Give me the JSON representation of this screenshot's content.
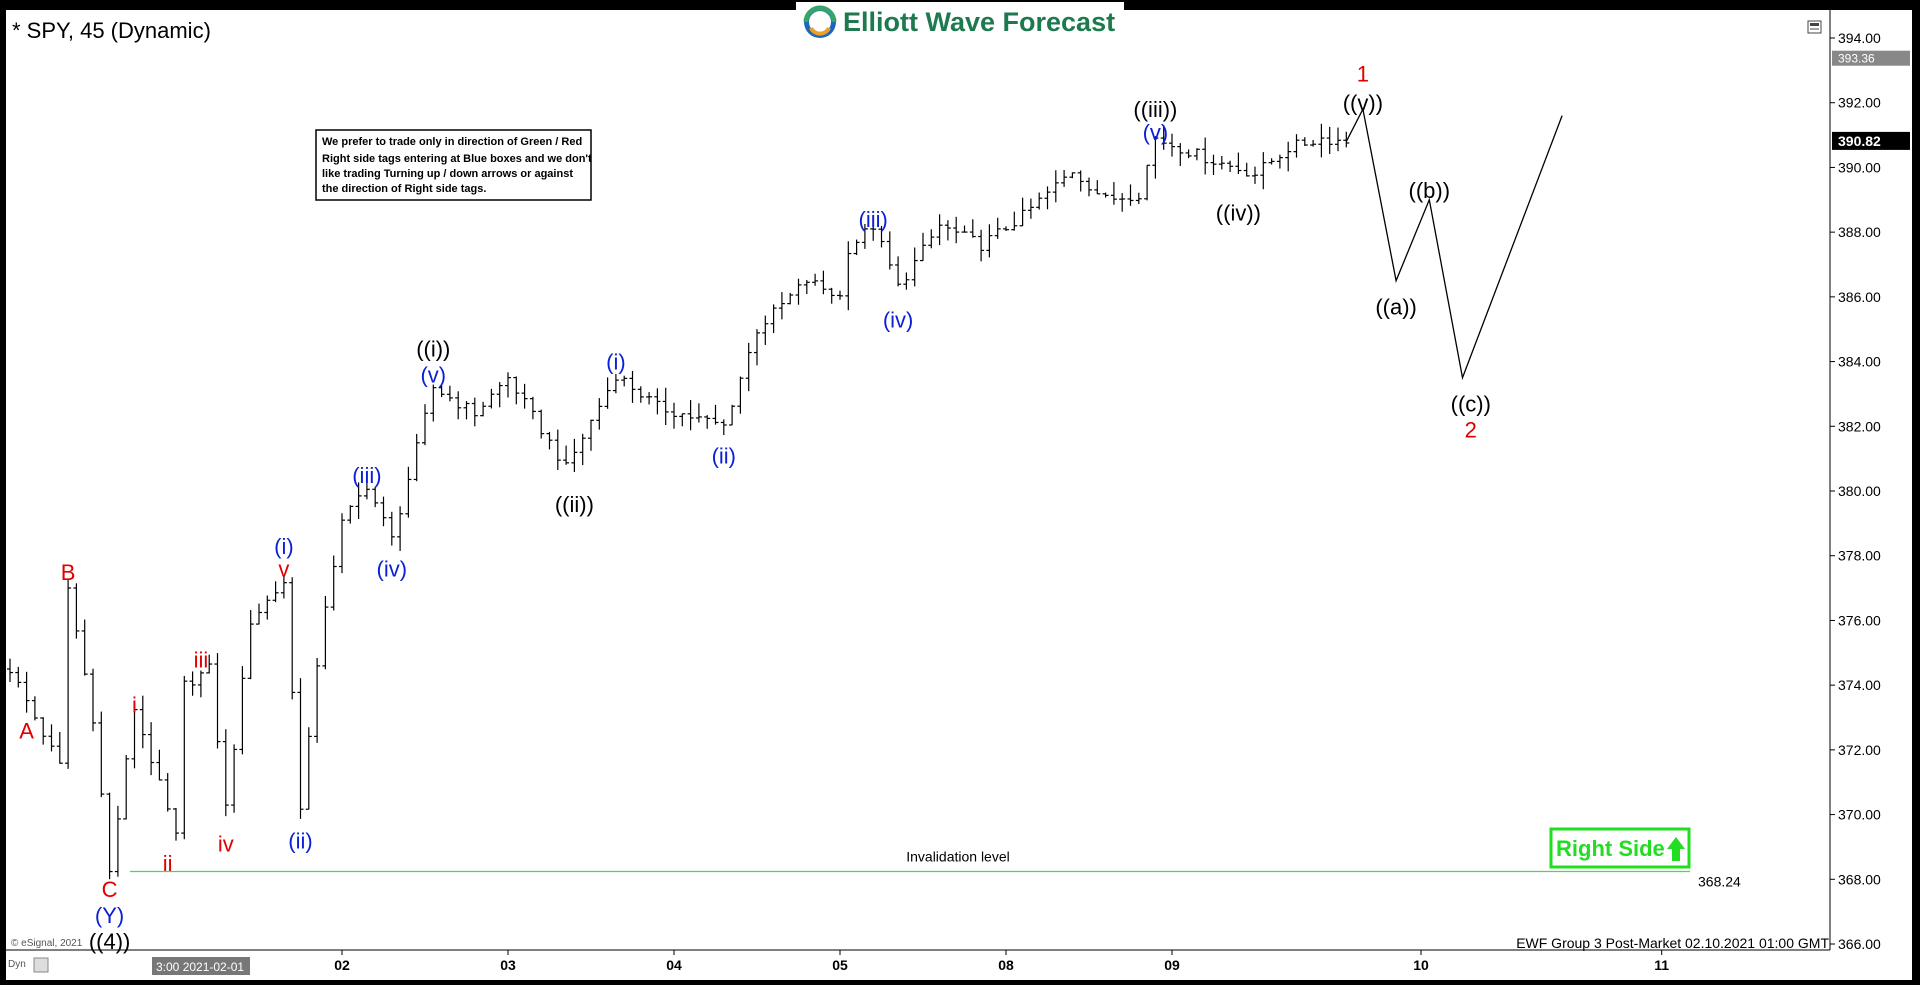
{
  "header": {
    "symbol_title": "* SPY, 45 (Dynamic)",
    "logo_text": "Elliott Wave Forecast"
  },
  "note_lines": [
    "We prefer to trade only in direction of Green / Red",
    "Right side tags entering at Blue boxes and we don't",
    "like trading Turning up / down arrows or against",
    "the direction of Right side tags."
  ],
  "right_side_label": "Right Side",
  "invalidation": {
    "label": "Invalidation level",
    "value_label": "368.24"
  },
  "footer": {
    "copyright": "© eSignal, 2021",
    "group": "EWF Group 3 Post-Market 02.10.2021 01:00 GMT",
    "dyn": "Dyn",
    "first_date": "3:00 2021-02-01"
  },
  "axis_badges": {
    "high": "393.36",
    "last": "390.82"
  },
  "colors": {
    "red": "#e00000",
    "blue": "#0a1fd6",
    "green": "#22dd22",
    "invalidation_line": "#44dd44",
    "logo_green": "#1d7a4f"
  },
  "chart_data": {
    "type": "ohlc",
    "ylim": [
      366,
      394
    ],
    "yticks": [
      "394.00",
      "392.00",
      "390.00",
      "388.00",
      "386.00",
      "384.00",
      "382.00",
      "380.00",
      "378.00",
      "376.00",
      "374.00",
      "372.00",
      "370.00",
      "368.00",
      "366.00"
    ],
    "ytick_values": [
      394,
      392,
      390,
      388,
      386,
      384,
      382,
      380,
      378,
      376,
      374,
      372,
      370,
      368,
      366
    ],
    "xticks": [
      {
        "label": "02",
        "bar": 40
      },
      {
        "label": "03",
        "bar": 60
      },
      {
        "label": "04",
        "bar": 80
      },
      {
        "label": "05",
        "bar": 100
      },
      {
        "label": "08",
        "bar": 120
      },
      {
        "label": "09",
        "bar": 140
      },
      {
        "label": "10",
        "bar": 170
      },
      {
        "label": "11",
        "bar": 199
      }
    ],
    "price_path": [
      [
        0,
        374.5
      ],
      [
        6,
        371.5
      ],
      [
        7,
        377.0
      ],
      [
        10,
        373.0
      ],
      [
        12,
        368.2
      ],
      [
        15,
        373.3
      ],
      [
        20,
        369.3
      ],
      [
        21,
        374.0
      ],
      [
        24,
        374.5
      ],
      [
        26,
        370.2
      ],
      [
        29,
        376.0
      ],
      [
        33,
        377.2
      ],
      [
        35,
        370.3
      ],
      [
        38,
        376.5
      ],
      [
        40,
        379.0
      ],
      [
        43,
        380.2
      ],
      [
        46,
        378.5
      ],
      [
        51,
        383.2
      ],
      [
        56,
        382.4
      ],
      [
        60,
        383.5
      ],
      [
        67,
        380.7
      ],
      [
        73,
        383.6
      ],
      [
        78,
        382.6
      ],
      [
        86,
        382.0
      ],
      [
        90,
        385.0
      ],
      [
        96,
        386.5
      ],
      [
        100,
        386.0
      ],
      [
        101,
        387.5
      ],
      [
        104,
        388.2
      ],
      [
        107,
        386.3
      ],
      [
        112,
        388.2
      ],
      [
        117,
        387.6
      ],
      [
        122,
        388.5
      ],
      [
        128,
        389.9
      ],
      [
        132,
        389.0
      ],
      [
        136,
        389.2
      ],
      [
        138,
        390.9
      ],
      [
        145,
        390.2
      ],
      [
        150,
        389.8
      ],
      [
        154,
        390.6
      ],
      [
        158,
        390.9
      ],
      [
        161,
        390.8
      ]
    ],
    "projection": [
      [
        161,
        390.8
      ],
      [
        163,
        391.8
      ],
      [
        167,
        386.5
      ],
      [
        171,
        389.0
      ],
      [
        175,
        383.5
      ],
      [
        187,
        391.6
      ]
    ],
    "last_price": 390.82,
    "high_marker": 393.36,
    "invalidation_level": 368.24,
    "labels": [
      {
        "text": "A",
        "bar": 2,
        "y": 372.6,
        "color": "red"
      },
      {
        "text": "B",
        "bar": 7,
        "y": 377.5,
        "color": "red"
      },
      {
        "text": "C",
        "bar": 12,
        "y": 367.7,
        "color": "red"
      },
      {
        "text": "(Y)",
        "bar": 12,
        "y": 366.9,
        "color": "blue"
      },
      {
        "text": "((4))",
        "bar": 12,
        "y": 366.1,
        "color": "black"
      },
      {
        "text": "i",
        "bar": 15,
        "y": 373.4,
        "color": "red"
      },
      {
        "text": "ii",
        "bar": 19,
        "y": 368.5,
        "color": "red"
      },
      {
        "text": "iii",
        "bar": 23,
        "y": 374.8,
        "color": "red"
      },
      {
        "text": "iv",
        "bar": 26,
        "y": 369.1,
        "color": "red"
      },
      {
        "text": "v",
        "bar": 33,
        "y": 377.6,
        "color": "red"
      },
      {
        "text": "(i)",
        "bar": 33,
        "y": 378.3,
        "color": "blue"
      },
      {
        "text": "(ii)",
        "bar": 35,
        "y": 369.2,
        "color": "blue"
      },
      {
        "text": "(iii)",
        "bar": 43,
        "y": 380.5,
        "color": "blue"
      },
      {
        "text": "(iv)",
        "bar": 46,
        "y": 377.6,
        "color": "blue"
      },
      {
        "text": "(v)",
        "bar": 51,
        "y": 383.6,
        "color": "blue"
      },
      {
        "text": "((i))",
        "bar": 51,
        "y": 384.4,
        "color": "black"
      },
      {
        "text": "((ii))",
        "bar": 68,
        "y": 379.6,
        "color": "black"
      },
      {
        "text": "(i)",
        "bar": 73,
        "y": 384.0,
        "color": "blue"
      },
      {
        "text": "(ii)",
        "bar": 86,
        "y": 381.1,
        "color": "blue"
      },
      {
        "text": "(iii)",
        "bar": 104,
        "y": 388.4,
        "color": "blue"
      },
      {
        "text": "(iv)",
        "bar": 107,
        "y": 385.3,
        "color": "blue"
      },
      {
        "text": "(v)",
        "bar": 138,
        "y": 391.1,
        "color": "blue"
      },
      {
        "text": "((iii))",
        "bar": 138,
        "y": 391.8,
        "color": "black"
      },
      {
        "text": "((iv))",
        "bar": 148,
        "y": 388.6,
        "color": "black"
      },
      {
        "text": "((v))",
        "bar": 163,
        "y": 392.0,
        "color": "black"
      },
      {
        "text": "1",
        "bar": 163,
        "y": 392.9,
        "color": "red"
      },
      {
        "text": "((a))",
        "bar": 167,
        "y": 385.7,
        "color": "black"
      },
      {
        "text": "((b))",
        "bar": 171,
        "y": 389.3,
        "color": "black"
      },
      {
        "text": "((c))",
        "bar": 176,
        "y": 382.7,
        "color": "black"
      },
      {
        "text": "2",
        "bar": 176,
        "y": 381.9,
        "color": "red"
      }
    ]
  }
}
